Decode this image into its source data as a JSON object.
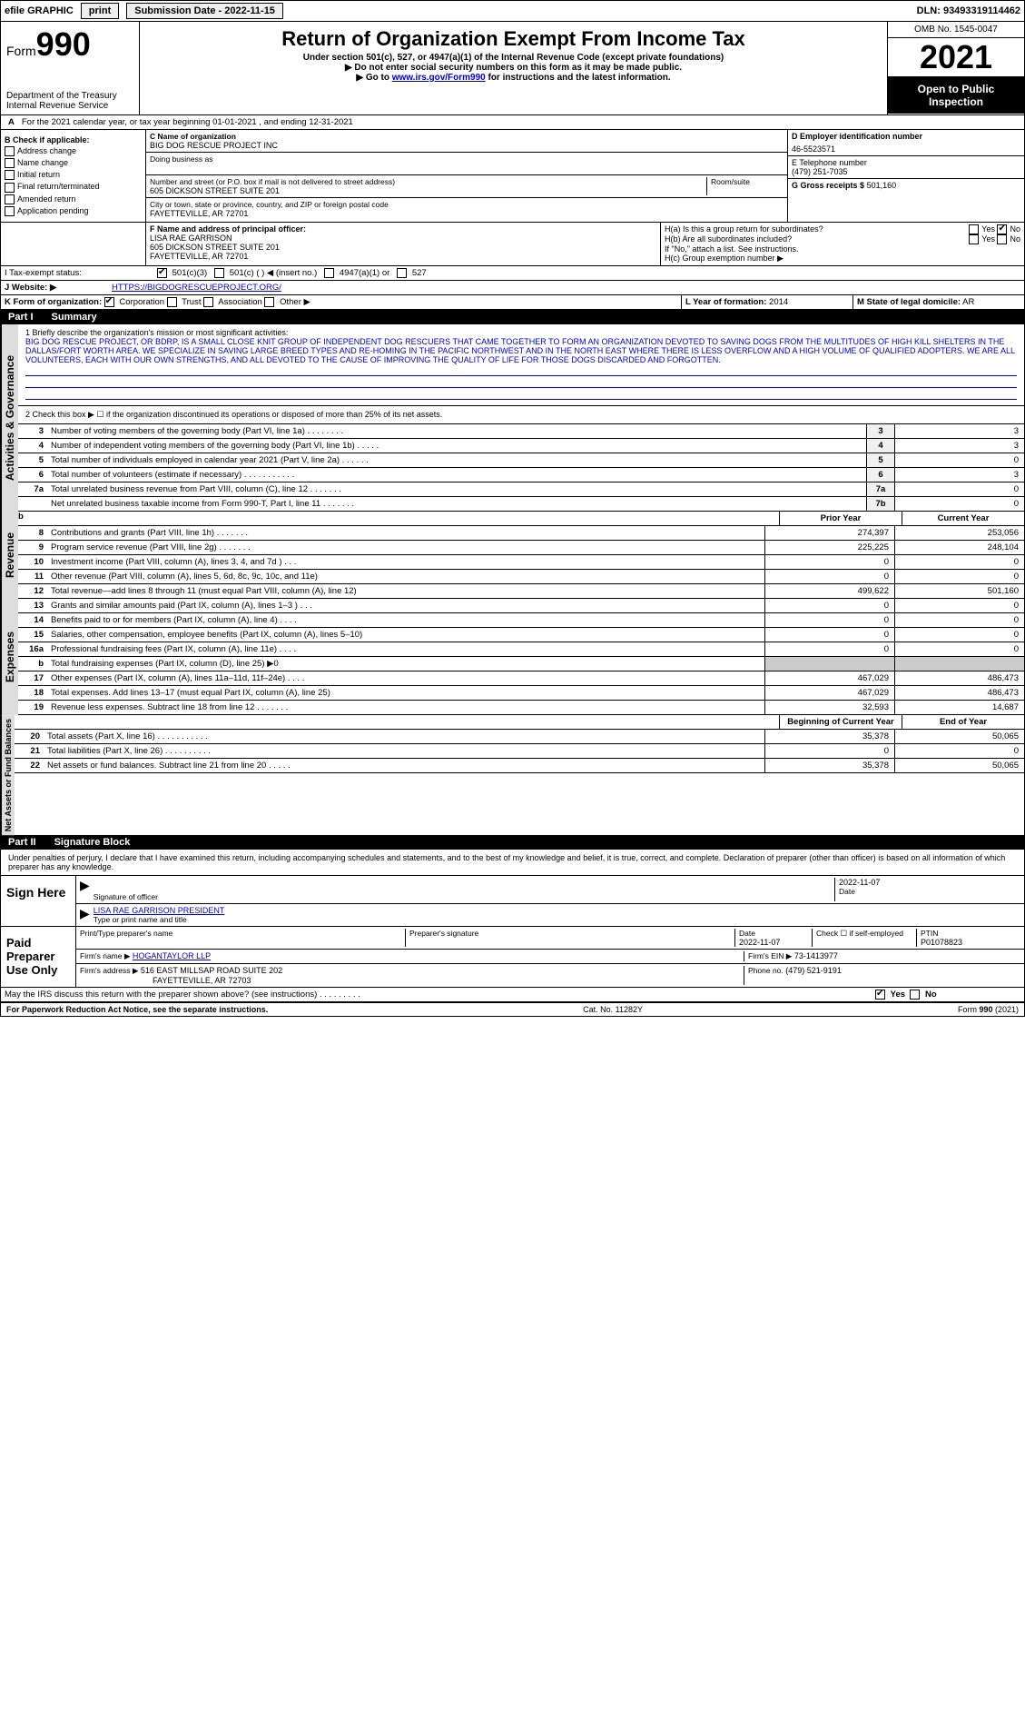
{
  "topbar": {
    "efile": "efile GRAPHIC",
    "print": "print",
    "sub_date_label": "Submission Date - 2022-11-15",
    "dln": "DLN: 93493319114462"
  },
  "header": {
    "form_label": "Form",
    "form_no": "990",
    "dept": "Department of the Treasury",
    "irs": "Internal Revenue Service",
    "title": "Return of Organization Exempt From Income Tax",
    "sub1": "Under section 501(c), 527, or 4947(a)(1) of the Internal Revenue Code (except private foundations)",
    "sub2": "▶ Do not enter social security numbers on this form as it may be made public.",
    "sub3_pre": "▶ Go to ",
    "sub3_link": "www.irs.gov/Form990",
    "sub3_post": " for instructions and the latest information.",
    "omb": "OMB No. 1545-0047",
    "year": "2021",
    "open": "Open to Public Inspection"
  },
  "line_a": "For the 2021 calendar year, or tax year beginning 01-01-2021   , and ending 12-31-2021",
  "box_b": {
    "title": "B Check if applicable:",
    "items": [
      "Address change",
      "Name change",
      "Initial return",
      "Final return/terminated",
      "Amended return",
      "Application pending"
    ]
  },
  "box_c": {
    "label": "C Name of organization",
    "name": "BIG DOG RESCUE PROJECT INC",
    "dba_label": "Doing business as",
    "addr_label": "Number and street (or P.O. box if mail is not delivered to street address)",
    "addr_room": "Room/suite",
    "addr": "605 DICKSON STREET SUITE 201",
    "city_label": "City or town, state or province, country, and ZIP or foreign postal code",
    "city": "FAYETTEVILLE, AR  72701"
  },
  "box_d": {
    "label": "D Employer identification number",
    "val": "46-5523571"
  },
  "box_e": {
    "label": "E Telephone number",
    "val": "(479) 251-7035"
  },
  "box_g": {
    "label": "G Gross receipts $",
    "val": "501,160"
  },
  "box_f": {
    "label": "F Name and address of principal officer:",
    "name": "LISA RAE GARRISON",
    "addr1": "605 DICKSON STREET SUITE 201",
    "addr2": "FAYETTEVILLE, AR  72701"
  },
  "box_h": {
    "a": "H(a) Is this a group return for subordinates?",
    "b": "H(b) Are all subordinates included?",
    "note": "If \"No,\" attach a list. See instructions.",
    "c": "H(c) Group exemption number ▶"
  },
  "box_i": {
    "label": "I   Tax-exempt status:",
    "opt1": "501(c)(3)",
    "opt2": "501(c) (  ) ◀ (insert no.)",
    "opt3": "4947(a)(1) or",
    "opt4": "527"
  },
  "box_j": {
    "label": "J   Website: ▶",
    "val": "HTTPS://BIGDOGRESCUEPROJECT.ORG/"
  },
  "box_k": {
    "label": "K Form of organization:",
    "opts": [
      "Corporation",
      "Trust",
      "Association",
      "Other ▶"
    ]
  },
  "box_l": {
    "label": "L Year of formation:",
    "val": "2014"
  },
  "box_m": {
    "label": "M State of legal domicile:",
    "val": "AR"
  },
  "part1": {
    "label": "Part I",
    "title": "Summary"
  },
  "mission": {
    "prompt": "1   Briefly describe the organization's mission or most significant activities:",
    "text": "BIG DOG RESCUE PROJECT, OR BDRP, IS A SMALL CLOSE KNIT GROUP OF INDEPENDENT DOG RESCUERS THAT CAME TOGETHER TO FORM AN ORGANIZATION DEVOTED TO SAVING DOGS FROM THE MULTITUDES OF HIGH KILL SHELTERS IN THE DALLAS/FORT WORTH AREA. WE SPECIALIZE IN SAVING LARGE BREED TYPES AND RE-HOMING IN THE PACIFIC NORTHWEST AND IN THE NORTH EAST WHERE THERE IS LESS OVERFLOW AND A HIGH VOLUME OF QUALIFIED ADOPTERS. WE ARE ALL VOLUNTEERS, EACH WITH OUR OWN STRENGTHS, AND ALL DEVOTED TO THE CAUSE OF IMPROVING THE QUALITY OF LIFE FOR THOSE DOGS DISCARDED AND FORGOTTEN."
  },
  "line2": "2   Check this box ▶ ☐ if the organization discontinued its operations or disposed of more than 25% of its net assets.",
  "gov_lines": [
    {
      "n": "3",
      "d": "Number of voting members of the governing body (Part VI, line 1a)  .    .    .    .    .    .    .    .",
      "b": "3",
      "v": "3"
    },
    {
      "n": "4",
      "d": "Number of independent voting members of the governing body (Part VI, line 1b)   .    .    .    .    .",
      "b": "4",
      "v": "3"
    },
    {
      "n": "5",
      "d": "Total number of individuals employed in calendar year 2021 (Part V, line 2a)   .    .    .    .    .    .",
      "b": "5",
      "v": "0"
    },
    {
      "n": "6",
      "d": "Total number of volunteers (estimate if necessary)   .    .    .    .    .    .    .    .    .    .    .",
      "b": "6",
      "v": "3"
    },
    {
      "n": "7a",
      "d": "Total unrelated business revenue from Part VIII, column (C), line 12   .    .    .    .    .    .    .",
      "b": "7a",
      "v": "0"
    },
    {
      "n": "",
      "d": "Net unrelated business taxable income from Form 990-T, Part I, line 11   .    .    .    .    .    .    .",
      "b": "7b",
      "v": "0"
    }
  ],
  "col_h": {
    "b": "b",
    "prior": "Prior Year",
    "curr": "Current Year"
  },
  "rev_label": "Revenue",
  "rev_lines": [
    {
      "n": "8",
      "d": "Contributions and grants (Part VIII, line 1h)   .    .    .    .    .    .    .",
      "p": "274,397",
      "c": "253,056"
    },
    {
      "n": "9",
      "d": "Program service revenue (Part VIII, line 2g)   .    .    .    .    .    .    .",
      "p": "225,225",
      "c": "248,104"
    },
    {
      "n": "10",
      "d": "Investment income (Part VIII, column (A), lines 3, 4, and 7d )   .    .    .",
      "p": "0",
      "c": "0"
    },
    {
      "n": "11",
      "d": "Other revenue (Part VIII, column (A), lines 5, 6d, 8c, 9c, 10c, and 11e)",
      "p": "0",
      "c": "0"
    },
    {
      "n": "12",
      "d": "Total revenue—add lines 8 through 11 (must equal Part VIII, column (A), line 12)",
      "p": "499,622",
      "c": "501,160"
    }
  ],
  "exp_label": "Expenses",
  "exp_lines": [
    {
      "n": "13",
      "d": "Grants and similar amounts paid (Part IX, column (A), lines 1–3 )   .    .    .",
      "p": "0",
      "c": "0"
    },
    {
      "n": "14",
      "d": "Benefits paid to or for members (Part IX, column (A), line 4)   .    .    .    .",
      "p": "0",
      "c": "0"
    },
    {
      "n": "15",
      "d": "Salaries, other compensation, employee benefits (Part IX, column (A), lines 5–10)",
      "p": "0",
      "c": "0"
    },
    {
      "n": "16a",
      "d": "Professional fundraising fees (Part IX, column (A), line 11e)   .    .    .    .",
      "p": "0",
      "c": "0"
    },
    {
      "n": "b",
      "d": "Total fundraising expenses (Part IX, column (D), line 25) ▶0",
      "p": "",
      "c": "",
      "grey": true
    },
    {
      "n": "17",
      "d": "Other expenses (Part IX, column (A), lines 11a–11d, 11f–24e)   .    .    .    .",
      "p": "467,029",
      "c": "486,473"
    },
    {
      "n": "18",
      "d": "Total expenses. Add lines 13–17 (must equal Part IX, column (A), line 25)",
      "p": "467,029",
      "c": "486,473"
    },
    {
      "n": "19",
      "d": "Revenue less expenses. Subtract line 18 from line 12   .    .    .    .    .    .    .",
      "p": "32,593",
      "c": "14,687"
    }
  ],
  "net_label": "Net Assets or Fund Balances",
  "net_h": {
    "beg": "Beginning of Current Year",
    "end": "End of Year"
  },
  "net_lines": [
    {
      "n": "20",
      "d": "Total assets (Part X, line 16)   .    .    .    .    .    .    .    .    .    .    .",
      "p": "35,378",
      "c": "50,065"
    },
    {
      "n": "21",
      "d": "Total liabilities (Part X, line 26)   .    .    .    .    .    .    .    .    .    .",
      "p": "0",
      "c": "0"
    },
    {
      "n": "22",
      "d": "Net assets or fund balances. Subtract line 21 from line 20   .    .    .    .    .",
      "p": "35,378",
      "c": "50,065"
    }
  ],
  "part2": {
    "label": "Part II",
    "title": "Signature Block"
  },
  "penalty": "Under penalties of perjury, I declare that I have examined this return, including accompanying schedules and statements, and to the best of my knowledge and belief, it is true, correct, and complete. Declaration of preparer (other than officer) is based on all information of which preparer has any knowledge.",
  "sign": {
    "here": "Sign Here",
    "sig_officer": "Signature of officer",
    "date": "Date",
    "date_v": "2022-11-07",
    "name": "LISA RAE GARRISON PRESIDENT",
    "name_label": "Type or print name and title"
  },
  "paid": {
    "label": "Paid Preparer Use Only",
    "print_label": "Print/Type preparer's name",
    "sig_label": "Preparer's signature",
    "date_label": "Date",
    "date_v": "2022-11-07",
    "check_label": "Check ☐ if self-employed",
    "ptin_label": "PTIN",
    "ptin": "P01078823",
    "firm_name_label": "Firm's name    ▶",
    "firm_name": "HOGANTAYLOR LLP",
    "firm_ein_label": "Firm's EIN ▶",
    "firm_ein": "73-1413977",
    "firm_addr_label": "Firm's address ▶",
    "firm_addr": "516 EAST MILLSAP ROAD SUITE 202",
    "firm_city": "FAYETTEVILLE, AR  72703",
    "phone_label": "Phone no.",
    "phone": "(479) 521-9191"
  },
  "may_irs": "May the IRS discuss this return with the preparer shown above? (see instructions)   .    .    .    .    .    .    .    .    .",
  "yes": "Yes",
  "no": "No",
  "footer": {
    "pra": "For Paperwork Reduction Act Notice, see the separate instructions.",
    "cat": "Cat. No. 11282Y",
    "form": "Form 990 (2021)"
  }
}
